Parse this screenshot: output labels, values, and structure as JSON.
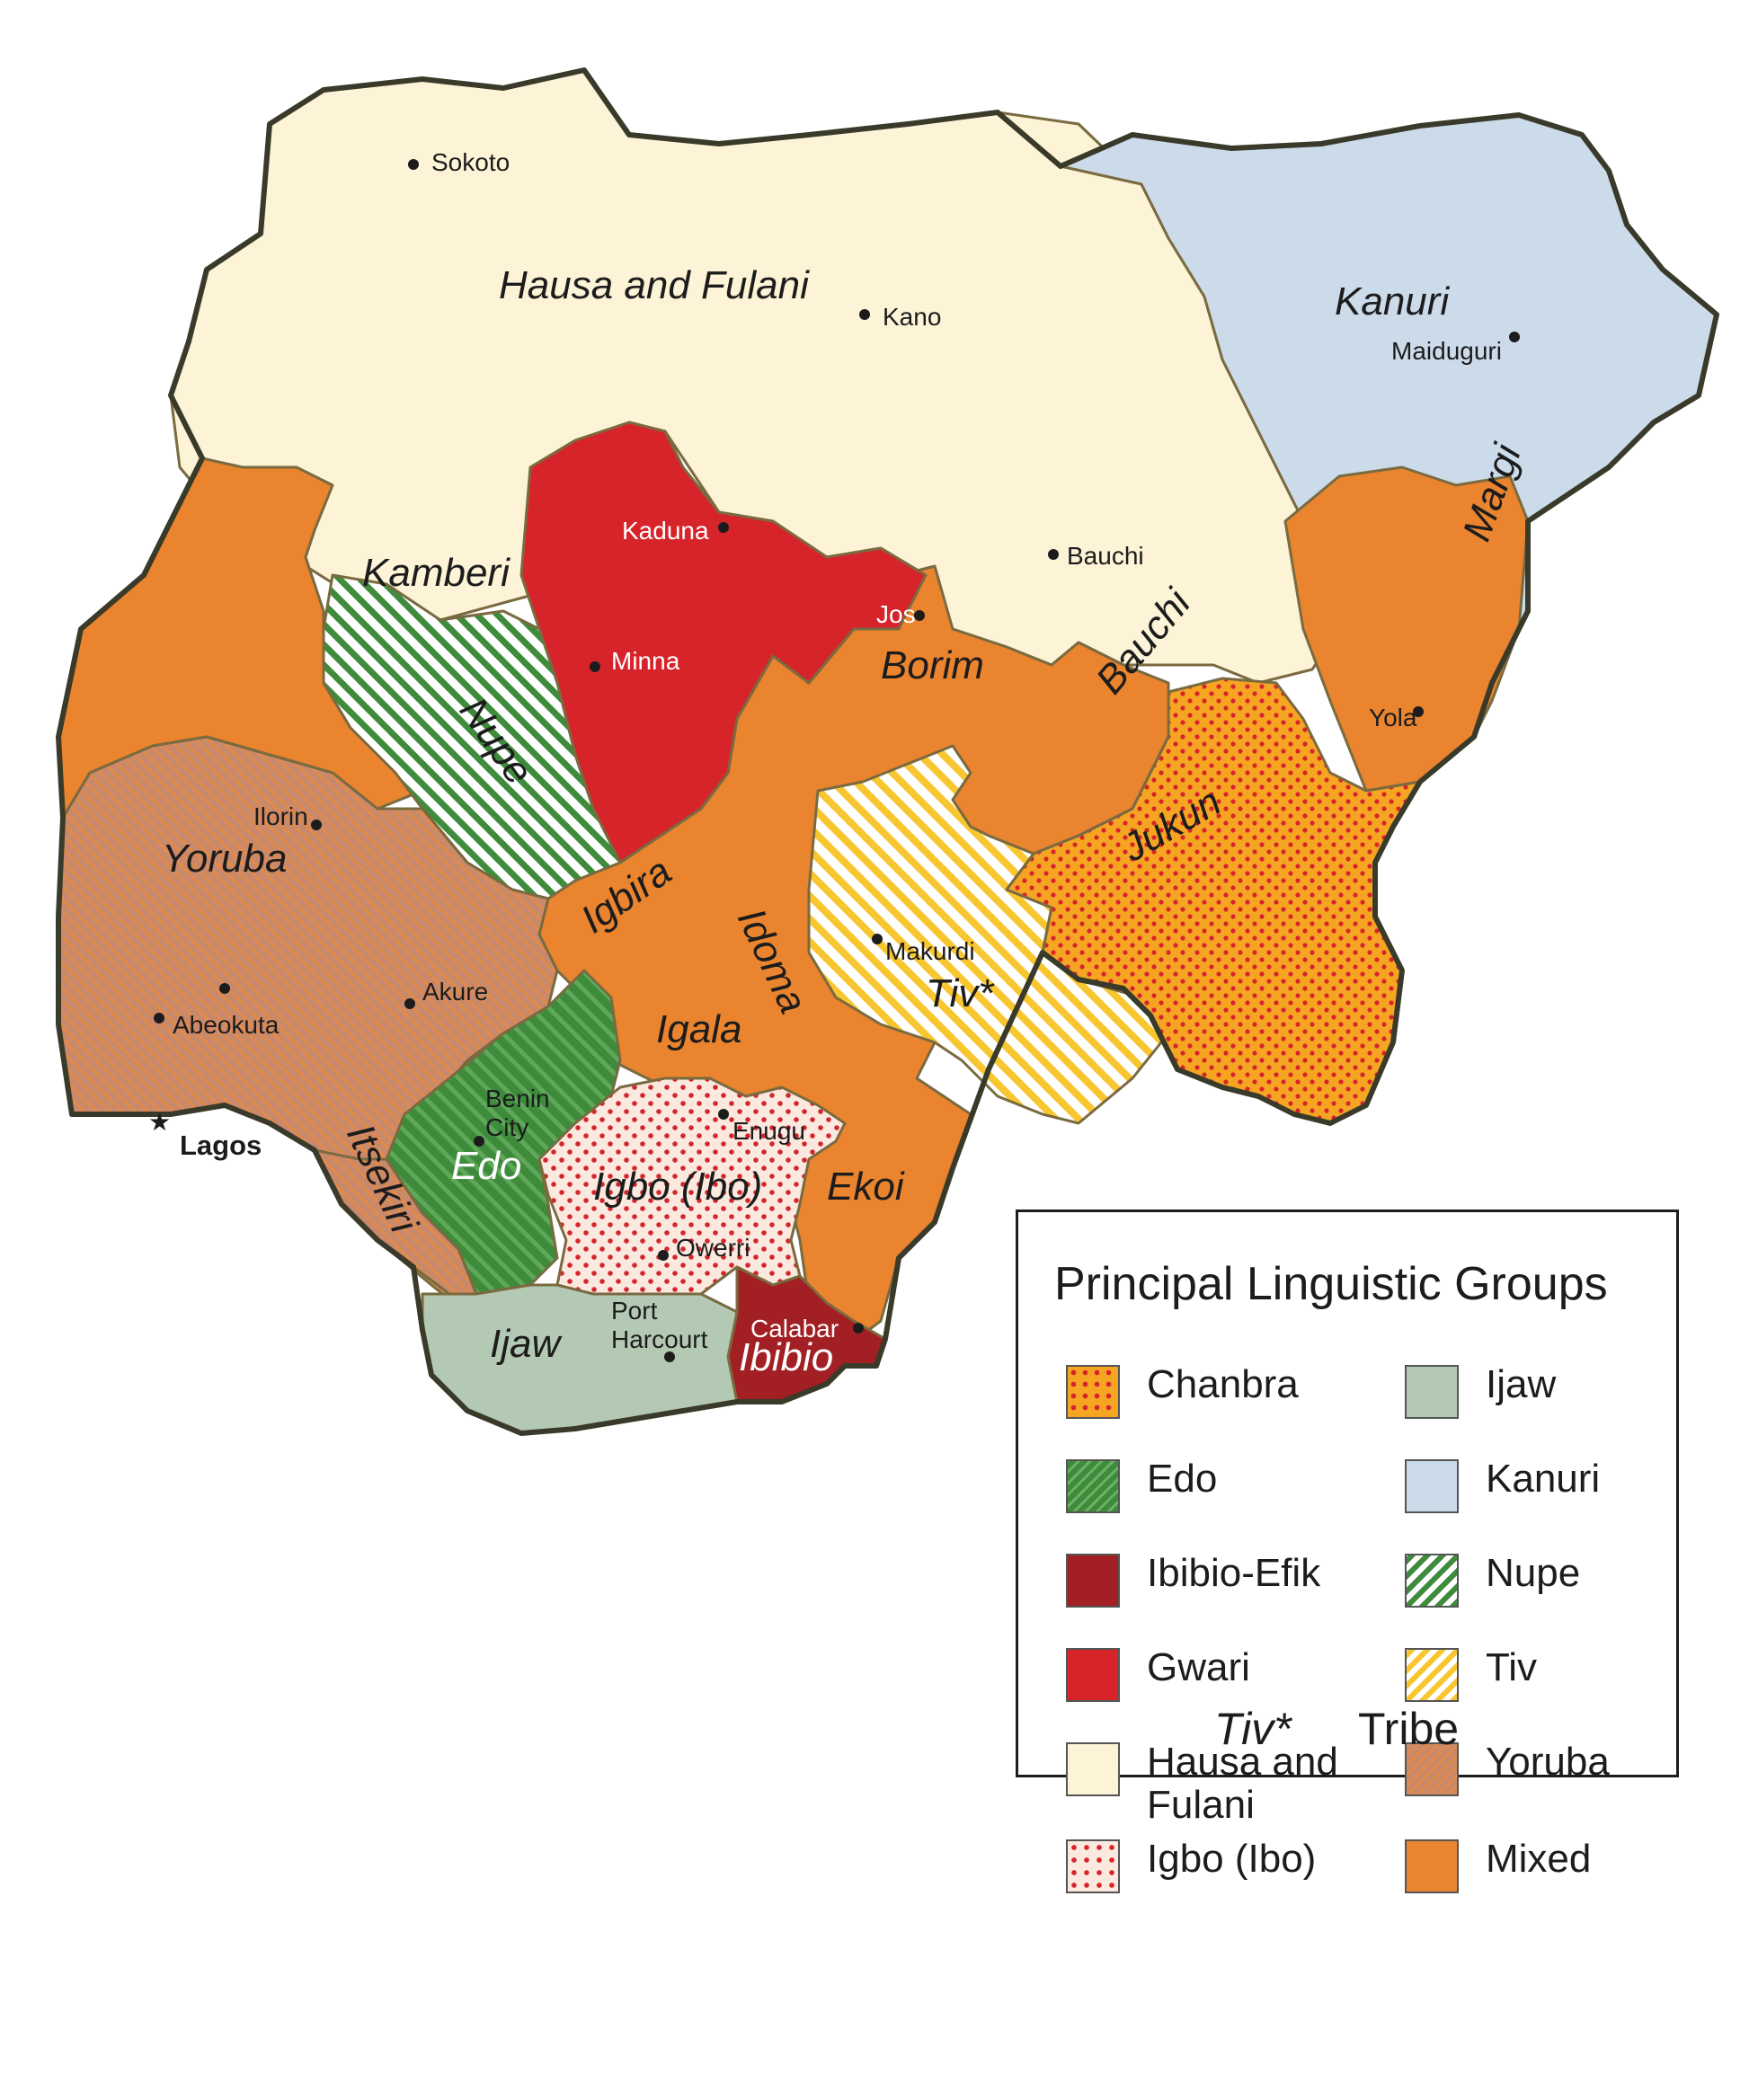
{
  "colors": {
    "hausa": "#fdf3d6",
    "kanuri": "#ccdbea",
    "mixed": "#ea842e",
    "gwari": "#d7242b",
    "ibibio": "#a21f24",
    "ijaw": "#b4c9b3",
    "edo": "#3e8b3b",
    "yoruba": "#c9896b",
    "chanbra": "#f6a523",
    "igbo_bg": "#fbe9df",
    "dot_red": "#d7242b",
    "tiv": "#f8c630",
    "nupe": "#3e8b3b",
    "border": "#3a3a2a"
  },
  "tribes": {
    "hausa": "Hausa and Fulani",
    "kanuri": "Kanuri",
    "margi": "Margi",
    "kamberi": "Kamberi",
    "nupe": "Nupe",
    "yoruba": "Yoruba",
    "borim": "Borim",
    "bauchi": "Bauchi",
    "jukun": "Jukun",
    "igbira": "Igbira",
    "idoma": "Idoma",
    "tiv": "Tiv*",
    "igala": "Igala",
    "edo": "Edo",
    "itsekiri": "Itsekiri",
    "igbo": "Igbo (Ibo)",
    "ekoi": "Ekoi",
    "ijaw": "Ijaw",
    "ibibio": "Ibibio"
  },
  "cities": {
    "sokoto": "Sokoto",
    "kano": "Kano",
    "maiduguri": "Maiduguri",
    "kaduna": "Kaduna",
    "bauchi": "Bauchi",
    "jos": "Jos",
    "minna": "Minna",
    "yola": "Yola",
    "ilorin": "Ilorin",
    "makurdi": "Makurdi",
    "akure": "Akure",
    "abeokuta": "Abeokuta",
    "benin_1": "Benin",
    "benin_2": "City",
    "enugu": "Enugu",
    "lagos": "Lagos",
    "owerri": "Owerri",
    "port_1": "Port",
    "port_2": "Harcourt",
    "calabar": "Calabar"
  },
  "legend": {
    "title": "Principal Linguistic Groups",
    "items": [
      {
        "label": "Chanbra",
        "pattern": "dots-on-orange"
      },
      {
        "label": "Edo",
        "pattern": "stripes-green"
      },
      {
        "label": "Ibibio-Efik",
        "pattern": "solid-dark-red"
      },
      {
        "label": "Gwari",
        "pattern": "solid-red"
      },
      {
        "label": "Hausa and Fulani",
        "pattern": "solid-cream"
      },
      {
        "label": "Igbo (Ibo)",
        "pattern": "dots-on-pink"
      },
      {
        "label": "Ijaw",
        "pattern": "solid-sage"
      },
      {
        "label": "Kanuri",
        "pattern": "solid-light-blue"
      },
      {
        "label": "Nupe",
        "pattern": "stripes-green-white"
      },
      {
        "label": "Tiv",
        "pattern": "stripes-yellow-white"
      },
      {
        "label": "Yoruba",
        "pattern": "stripes-tan"
      },
      {
        "label": "Mixed",
        "pattern": "solid-orange"
      }
    ],
    "tribe_example": "Tiv*",
    "tribe_label": "Tribe"
  }
}
